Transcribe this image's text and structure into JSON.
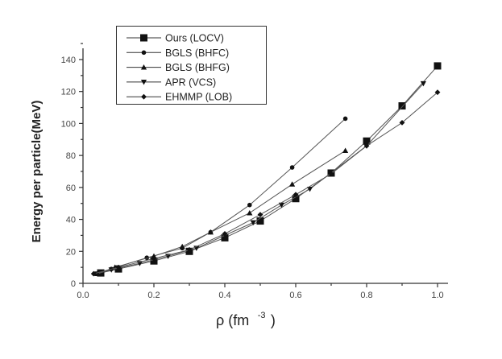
{
  "chart_data": {
    "type": "line",
    "title": "",
    "xlabel": "ρ (fm -3)",
    "xlabel_base": "ρ (fm",
    "xlabel_sup": "-3",
    "xlabel_close": ")",
    "ylabel": "Energy per particle(MeV)",
    "xlim": [
      0.0,
      1.0
    ],
    "ylim": [
      0,
      150
    ],
    "x_ticks": [
      "0.0",
      "0.2",
      "0.4",
      "0.6",
      "0.8",
      "1.0"
    ],
    "y_ticks": [
      "0",
      "20",
      "40",
      "60",
      "80",
      "100",
      "120",
      "140"
    ],
    "grid": false,
    "legend_position": "upper left",
    "series": [
      {
        "name": "Ours (LOCV)",
        "marker": "square",
        "x": [
          0.05,
          0.1,
          0.2,
          0.3,
          0.4,
          0.5,
          0.6,
          0.7,
          0.8,
          0.9,
          1.0
        ],
        "y": [
          6.5,
          9,
          14,
          20,
          28.5,
          39,
          53,
          69,
          89,
          111,
          136
        ]
      },
      {
        "name": "BGLS (BHFC)",
        "marker": "circle",
        "x": [
          0.04,
          0.08,
          0.18,
          0.28,
          0.36,
          0.47,
          0.59,
          0.74
        ],
        "y": [
          6,
          9,
          16,
          22,
          32,
          49,
          72.5,
          103
        ]
      },
      {
        "name": "BGLS (BHFG)",
        "marker": "triangle-up",
        "x": [
          0.04,
          0.09,
          0.2,
          0.28,
          0.36,
          0.47,
          0.59,
          0.74
        ],
        "y": [
          6,
          10,
          17,
          23,
          32,
          44,
          62,
          83
        ]
      },
      {
        "name": "APR (VCS)",
        "marker": "triangle-down",
        "x": [
          0.04,
          0.08,
          0.16,
          0.24,
          0.32,
          0.48,
          0.56,
          0.64,
          0.8,
          0.96
        ],
        "y": [
          6,
          8.5,
          12.5,
          17,
          22,
          38,
          49,
          59,
          86,
          125
        ]
      },
      {
        "name": "EHMMP (LOB)",
        "marker": "diamond",
        "x": [
          0.03,
          0.1,
          0.2,
          0.3,
          0.4,
          0.5,
          0.6,
          0.7,
          0.8,
          0.9,
          1.0
        ],
        "y": [
          6,
          10,
          15.5,
          21,
          31,
          43,
          55.5,
          68.5,
          86,
          100.5,
          119.5
        ]
      }
    ]
  },
  "style": {
    "line_color": "#555555",
    "marker_color": "#111111",
    "axis_color": "#333333",
    "background": "#ffffff"
  }
}
